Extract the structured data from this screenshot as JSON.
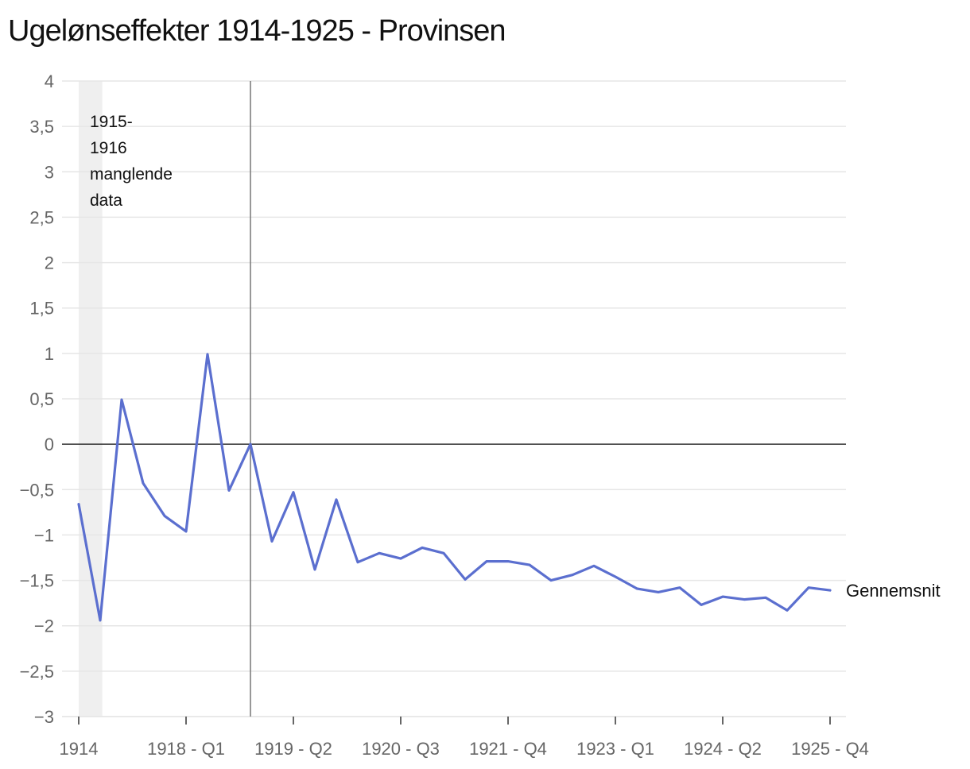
{
  "title": "Ugelønseffekter 1914-1925 - Provinsen",
  "chart_data": {
    "type": "line",
    "title": "Ugelønseffekter 1914-1925 - Provinsen",
    "xlabel": "",
    "ylabel": "",
    "ylim": [
      -3,
      4
    ],
    "yticks": [
      4,
      3.5,
      3,
      2.5,
      2,
      1.5,
      1,
      0.5,
      0,
      -0.5,
      -1,
      -1.5,
      -2,
      -2.5,
      -3
    ],
    "ytick_labels": [
      "4",
      "3,5",
      "3",
      "2,5",
      "2",
      "1,5",
      "1",
      "0,5",
      "0",
      "−0,5",
      "−1",
      "−1,5",
      "−2",
      "−2,5",
      "−3"
    ],
    "xtick_labels": [
      {
        "index": 0,
        "label": "1914"
      },
      {
        "index": 5,
        "label": "1918 - Q1"
      },
      {
        "index": 10,
        "label": "1919 - Q2"
      },
      {
        "index": 15,
        "label": "1920 - Q3"
      },
      {
        "index": 20,
        "label": "1921 - Q4"
      },
      {
        "index": 25,
        "label": "1923 - Q1"
      },
      {
        "index": 30,
        "label": "1924 - Q2"
      },
      {
        "index": 35,
        "label": "1925 - Q4"
      }
    ],
    "series": [
      {
        "name": "Gennemsnit",
        "color": "#5b6fcf",
        "values": [
          -0.66,
          -1.94,
          0.49,
          -0.43,
          -0.79,
          -0.96,
          0.99,
          -0.51,
          0.0,
          -1.07,
          -0.53,
          -1.38,
          -0.61,
          -1.3,
          -1.2,
          -1.26,
          -1.14,
          -1.2,
          -1.49,
          -1.29,
          -1.29,
          -1.33,
          -1.5,
          -1.44,
          -1.34,
          -1.46,
          -1.59,
          -1.63,
          -1.58,
          -1.77,
          -1.68,
          -1.71,
          -1.69,
          -1.83,
          -1.58,
          -1.61
        ]
      }
    ],
    "reference_lines": [
      {
        "axis": "y",
        "value": 0
      },
      {
        "axis": "x",
        "index": 8
      }
    ],
    "shaded_region": {
      "from_index": 0,
      "to_index": 1.1,
      "label_lines": [
        "1915-",
        "1916",
        "manglende",
        "data"
      ]
    },
    "colors": {
      "line": "#5b6fcf",
      "grid": "#e6e6e6",
      "shade": "#efefef",
      "axis": "#333333"
    }
  }
}
